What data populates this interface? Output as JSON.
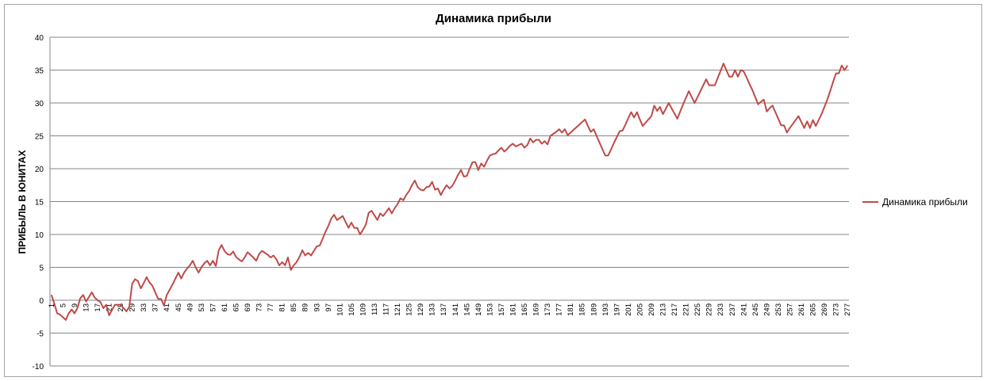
{
  "chart_data": {
    "type": "line",
    "title": "Динамика прибыли",
    "y_label": "ПРИБЫЛЬ В ЮНИТАХ",
    "categories": [
      "1",
      null,
      null,
      null,
      "5",
      null,
      null,
      null,
      "9",
      null,
      null,
      null,
      "13",
      null,
      null,
      null,
      "17",
      null,
      null,
      null,
      "21",
      null,
      null,
      null,
      "25",
      null,
      null,
      null,
      "29",
      null,
      null,
      null,
      "33",
      null,
      null,
      null,
      "37",
      null,
      null,
      null,
      "41",
      null,
      null,
      null,
      "45",
      null,
      null,
      null,
      "49",
      null,
      null,
      null,
      "53",
      null,
      null,
      null,
      "57",
      null,
      null,
      null,
      "61",
      null,
      null,
      null,
      "65",
      null,
      null,
      null,
      "69",
      null,
      null,
      null,
      "73",
      null,
      null,
      null,
      "77",
      null,
      null,
      null,
      "81",
      null,
      null,
      null,
      "85",
      null,
      null,
      null,
      "89",
      null,
      null,
      null,
      "93",
      null,
      null,
      null,
      "97",
      null,
      null,
      null,
      "101",
      null,
      null,
      null,
      "105",
      null,
      null,
      null,
      "109",
      null,
      null,
      null,
      "113",
      null,
      null,
      null,
      "117",
      null,
      null,
      null,
      "121",
      null,
      null,
      null,
      "125",
      null,
      null,
      null,
      "129",
      null,
      null,
      null,
      "133",
      null,
      null,
      null,
      "137",
      null,
      null,
      null,
      "141",
      null,
      null,
      null,
      "145",
      null,
      null,
      null,
      "149",
      null,
      null,
      null,
      "153",
      null,
      null,
      null,
      "157",
      null,
      null,
      null,
      "161",
      null,
      null,
      null,
      "165",
      null,
      null,
      null,
      "169",
      null,
      null,
      null,
      "173",
      null,
      null,
      null,
      "177",
      null,
      null,
      null,
      "181",
      null,
      null,
      null,
      "185",
      null,
      null,
      null,
      "189",
      null,
      null,
      null,
      "193",
      null,
      null,
      null,
      "197",
      null,
      null,
      null,
      "201",
      null,
      null,
      null,
      "205",
      null,
      null,
      null,
      "209",
      null,
      null,
      null,
      "213",
      null,
      null,
      null,
      "217",
      null,
      null,
      null,
      "221",
      null,
      null,
      null,
      "225",
      null,
      null,
      null,
      "229",
      null,
      null,
      null,
      "233",
      null,
      null,
      null,
      "237",
      null,
      null,
      null,
      "241",
      null,
      null,
      null,
      "245",
      null,
      null,
      null,
      "249",
      null,
      null,
      null,
      "253",
      null,
      null,
      null,
      "257",
      null,
      null,
      null,
      "261",
      null,
      null,
      null,
      "265",
      null,
      null,
      null,
      "269",
      null,
      null,
      null,
      "273",
      null,
      null,
      null,
      "277"
    ],
    "series": [
      {
        "name": "Динамика прибыли",
        "color": "#be4b48",
        "values": [
          0.8,
          -0.5,
          -2,
          -2.2,
          -2.6,
          -3,
          -2,
          -1.4,
          -2,
          -1.2,
          0.3,
          0.8,
          -0.2,
          0.5,
          1.2,
          0.4,
          0,
          -0.3,
          -1.2,
          -0.7,
          -2.3,
          -1.5,
          -0.7,
          -0.7,
          -0.7,
          -1.2,
          -1.7,
          -1,
          2.5,
          3.2,
          2.9,
          1.8,
          2.6,
          3.5,
          2.7,
          2.2,
          1.2,
          0.2,
          0.2,
          -0.8,
          0.8,
          1.6,
          2.4,
          3.3,
          4.2,
          3.3,
          4.2,
          4.8,
          5.3,
          6,
          5,
          4.2,
          5,
          5.6,
          6,
          5.3,
          6,
          5.2,
          7.6,
          8.4,
          7.5,
          7,
          6.9,
          7.4,
          6.6,
          6.2,
          5.9,
          6.5,
          7.3,
          6.9,
          6.5,
          6,
          7,
          7.5,
          7.2,
          6.9,
          6.5,
          6.8,
          6.2,
          5.3,
          5.8,
          5.3,
          6.5,
          4.6,
          5.3,
          5.8,
          6.6,
          7.6,
          6.8,
          7.2,
          6.8,
          7.5,
          8.2,
          8.3,
          9.3,
          10.4,
          11.3,
          12.4,
          13,
          12.2,
          12.5,
          12.8,
          11.9,
          11,
          11.8,
          11,
          11,
          10,
          10.7,
          11.5,
          13.3,
          13.6,
          12.9,
          12.2,
          13.2,
          12.8,
          13.4,
          14,
          13.2,
          14,
          14.6,
          15.5,
          15.2,
          16,
          16.6,
          17.5,
          18.2,
          17.2,
          16.8,
          16.7,
          17.2,
          17.3,
          18,
          16.8,
          17,
          16,
          16.8,
          17.5,
          17,
          17.4,
          18.2,
          19.1,
          19.8,
          18.8,
          18.9,
          20,
          21,
          21,
          19.8,
          20.8,
          20.3,
          21.2,
          22,
          22.2,
          22.3,
          22.8,
          23.2,
          22.6,
          23,
          23.5,
          23.8,
          23.4,
          23.6,
          23.8,
          23.2,
          23.6,
          24.6,
          24,
          24.4,
          24.4,
          23.8,
          24.2,
          23.7,
          25,
          25.3,
          25.6,
          26,
          25.5,
          26,
          25.1,
          25.5,
          25.9,
          26.3,
          26.7,
          27.1,
          27.5,
          26.5,
          25.6,
          26,
          25,
          24,
          23,
          22,
          22,
          22.9,
          23.9,
          24.8,
          25.7,
          25.8,
          26.7,
          27.7,
          28.6,
          27.8,
          28.6,
          27.5,
          26.5,
          27,
          27.5,
          28,
          29.6,
          28.8,
          29.4,
          28.3,
          29.1,
          30,
          29.2,
          28.4,
          27.6,
          28.7,
          29.8,
          30.8,
          31.8,
          30.9,
          30,
          30.9,
          31.8,
          32.7,
          33.6,
          32.7,
          32.7,
          32.7,
          33.8,
          34.9,
          36,
          35,
          34,
          34,
          35,
          34,
          35,
          34.8,
          33.9,
          32.9,
          32,
          30.9,
          29.8,
          30.2,
          30.5,
          28.7,
          29.2,
          29.6,
          28.6,
          27.6,
          26.6,
          26.6,
          25.5,
          26.2,
          26.8,
          27.4,
          28,
          27.1,
          26.2,
          27.2,
          26.2,
          27.4,
          26.5,
          27.4,
          28.3,
          29.4,
          30.5,
          31.8,
          33.2,
          34.5,
          34.5,
          35.7,
          35,
          35.7
        ]
      }
    ],
    "ylim": [
      -10,
      40
    ],
    "yticks": [
      -10,
      -5,
      0,
      5,
      10,
      15,
      20,
      25,
      30,
      35,
      40
    ],
    "grid": true,
    "legend": "right"
  }
}
